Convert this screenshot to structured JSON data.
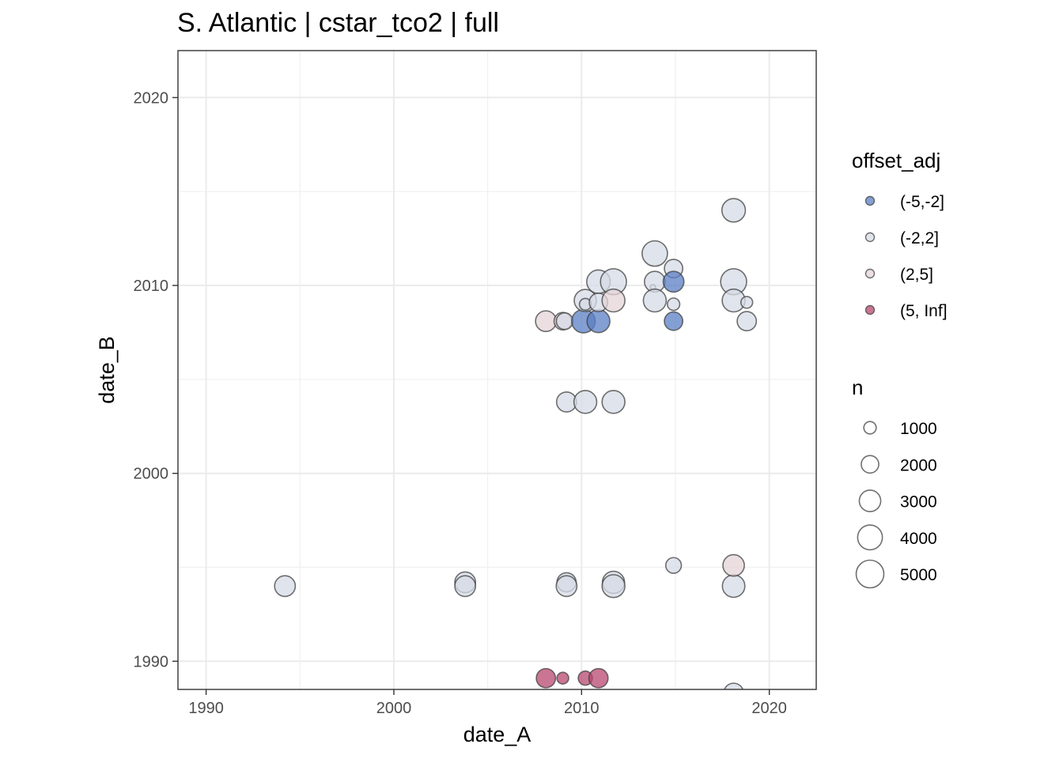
{
  "chart_data": {
    "type": "scatter",
    "title": "S. Atlantic | cstar_tco2 | full",
    "xlabel": "date_A",
    "ylabel": "date_B",
    "xlim": [
      1988.5,
      2022.5
    ],
    "ylim": [
      1988.5,
      2022.5
    ],
    "x_ticks": [
      1990,
      2000,
      2010,
      2020
    ],
    "y_ticks": [
      1990,
      2000,
      2010,
      2020
    ],
    "x_tick_labels": [
      "1990",
      "2000",
      "2010",
      "2020"
    ],
    "y_tick_labels": [
      "1990",
      "2000",
      "2010",
      "2020"
    ],
    "grid": true,
    "colors": {
      "(-5,-2]": "#5b7fc4",
      "(-2,2]": "#d5dbe6",
      "(2,5]": "#e4d4d8",
      "(5, Inf]": "#b8476f"
    },
    "legend_color": {
      "title": "offset_adj",
      "entries": [
        "(-5,-2]",
        "(-2,2]",
        "(2,5]",
        "(5, Inf]"
      ]
    },
    "legend_size": {
      "title": "n",
      "entries": [
        1000,
        2000,
        3000,
        4000,
        5000
      ],
      "labels": [
        "1000",
        "2000",
        "3000",
        "4000",
        "5000"
      ]
    },
    "points": [
      {
        "x": 1994.2,
        "y": 1994.0,
        "n": 2800,
        "offset": "(-2,2]"
      },
      {
        "x": 2003.8,
        "y": 1994.2,
        "n": 2800,
        "offset": "(-2,2]"
      },
      {
        "x": 2003.8,
        "y": 1994.0,
        "n": 2800,
        "offset": "(-2,2]"
      },
      {
        "x": 2009.2,
        "y": 1994.2,
        "n": 2400,
        "offset": "(-2,2]"
      },
      {
        "x": 2009.2,
        "y": 1994.0,
        "n": 2800,
        "offset": "(-2,2]"
      },
      {
        "x": 2011.7,
        "y": 1994.2,
        "n": 3200,
        "offset": "(-2,2]"
      },
      {
        "x": 2011.7,
        "y": 1994.0,
        "n": 3400,
        "offset": "(-2,2]"
      },
      {
        "x": 2014.9,
        "y": 1995.1,
        "n": 1600,
        "offset": "(-2,2]"
      },
      {
        "x": 2018.1,
        "y": 1994.0,
        "n": 3300,
        "offset": "(-2,2]"
      },
      {
        "x": 2018.1,
        "y": 1995.1,
        "n": 3000,
        "offset": "(2,5]"
      },
      {
        "x": 2009.2,
        "y": 2003.8,
        "n": 2600,
        "offset": "(-2,2]"
      },
      {
        "x": 2010.2,
        "y": 2003.8,
        "n": 3400,
        "offset": "(-2,2]"
      },
      {
        "x": 2011.7,
        "y": 2003.8,
        "n": 3400,
        "offset": "(-2,2]"
      },
      {
        "x": 2008.1,
        "y": 2008.1,
        "n": 2800,
        "offset": "(2,5]"
      },
      {
        "x": 2009.0,
        "y": 2008.1,
        "n": 2000,
        "offset": "(2,5]"
      },
      {
        "x": 2009.1,
        "y": 2008.1,
        "n": 1800,
        "offset": "(-2,2]"
      },
      {
        "x": 2010.1,
        "y": 2008.1,
        "n": 3600,
        "offset": "(-5,-2]"
      },
      {
        "x": 2010.9,
        "y": 2008.1,
        "n": 3400,
        "offset": "(-5,-2]"
      },
      {
        "x": 2010.2,
        "y": 2009.2,
        "n": 3200,
        "offset": "(-2,2]"
      },
      {
        "x": 2010.2,
        "y": 2009.0,
        "n": 900,
        "offset": "(-2,2]"
      },
      {
        "x": 2010.9,
        "y": 2010.2,
        "n": 3600,
        "offset": "(-2,2]"
      },
      {
        "x": 2010.9,
        "y": 2009.1,
        "n": 2200,
        "offset": "(-2,2]"
      },
      {
        "x": 2011.7,
        "y": 2010.2,
        "n": 4400,
        "offset": "(-2,2]"
      },
      {
        "x": 2011.7,
        "y": 2009.2,
        "n": 3400,
        "offset": "(2,5]"
      },
      {
        "x": 2013.9,
        "y": 2011.7,
        "n": 4200,
        "offset": "(-2,2]"
      },
      {
        "x": 2013.8,
        "y": 2009.9,
        "n": 200,
        "offset": "(-2,2]"
      },
      {
        "x": 2013.9,
        "y": 2010.2,
        "n": 2800,
        "offset": "(-2,2]"
      },
      {
        "x": 2013.9,
        "y": 2009.2,
        "n": 3400,
        "offset": "(-2,2]"
      },
      {
        "x": 2014.9,
        "y": 2010.9,
        "n": 2200,
        "offset": "(-2,2]"
      },
      {
        "x": 2014.9,
        "y": 2010.2,
        "n": 2800,
        "offset": "(-5,-2]"
      },
      {
        "x": 2014.9,
        "y": 2009.0,
        "n": 1000,
        "offset": "(-2,2]"
      },
      {
        "x": 2014.9,
        "y": 2008.1,
        "n": 2200,
        "offset": "(-5,-2]"
      },
      {
        "x": 2018.1,
        "y": 2014.0,
        "n": 3600,
        "offset": "(-2,2]"
      },
      {
        "x": 2018.1,
        "y": 2010.2,
        "n": 4400,
        "offset": "(-2,2]"
      },
      {
        "x": 2018.1,
        "y": 2009.2,
        "n": 3400,
        "offset": "(-2,2]"
      },
      {
        "x": 2018.8,
        "y": 2009.1,
        "n": 900,
        "offset": "(-2,2]"
      },
      {
        "x": 2018.8,
        "y": 2008.1,
        "n": 2400,
        "offset": "(-2,2]"
      },
      {
        "x": 2008.1,
        "y": 1989.1,
        "n": 2400,
        "offset": "(5, Inf]"
      },
      {
        "x": 2009.0,
        "y": 1989.1,
        "n": 900,
        "offset": "(5, Inf]"
      },
      {
        "x": 2010.2,
        "y": 1989.1,
        "n": 1300,
        "offset": "(5, Inf]"
      },
      {
        "x": 2010.9,
        "y": 1989.1,
        "n": 2400,
        "offset": "(5, Inf]"
      },
      {
        "x": 2018.1,
        "y": 1988.3,
        "n": 2600,
        "offset": "(-2,2]"
      }
    ]
  }
}
